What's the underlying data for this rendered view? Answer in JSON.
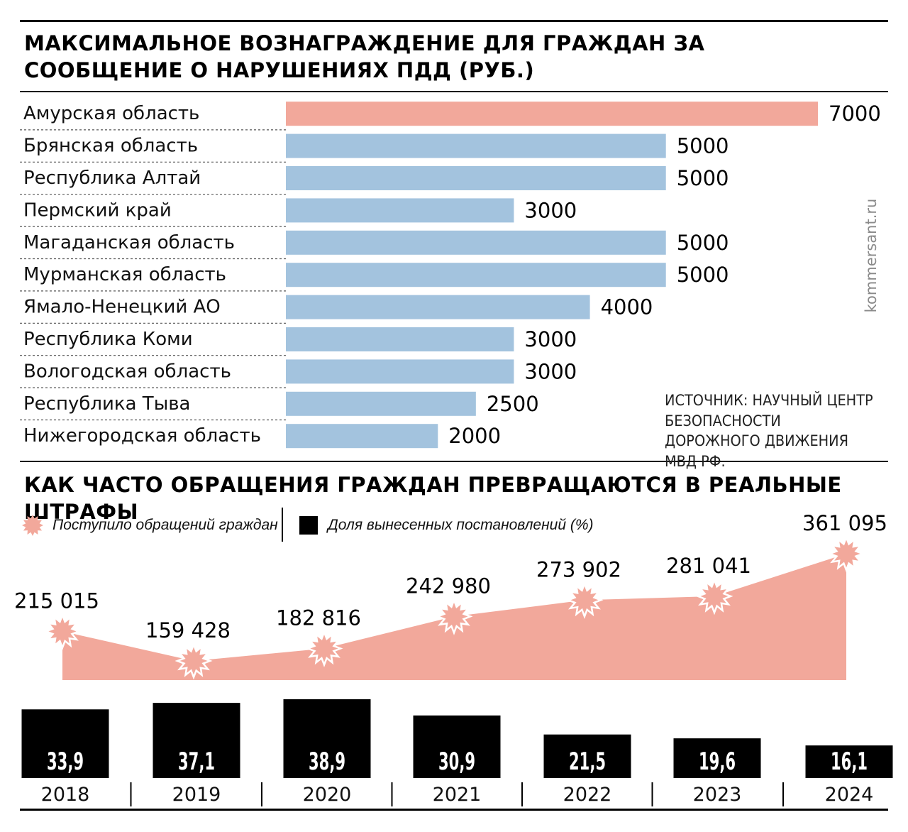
{
  "titles": {
    "chart1": "МАКСИМАЛЬНОЕ ВОЗНАГРАЖДЕНИЕ ДЛЯ ГРАЖДАН ЗА СООБЩЕНИЕ О НАРУШЕНИЯХ ПДД (РУБ.)",
    "chart2": "КАК ЧАСТО ОБРАЩЕНИЯ ГРАЖДАН ПРЕВРАЩАЮТСЯ В РЕАЛЬНЫЕ ШТРАФЫ"
  },
  "source": "ИСТОЧНИК: НАУЧНЫЙ ЦЕНТР БЕЗОПАСНОСТИ ДОРОЖНОГО ДВИЖЕНИЯ МВД РФ.",
  "watermark": "kommersant.ru",
  "legend": {
    "appeals": "Поступило обращений граждан",
    "share": "Доля вынесенных постановлений (%)"
  },
  "colors": {
    "highlight": "#f2a89b",
    "bar": "#a3c3de",
    "area": "#f2a89b",
    "ink": "#000000"
  },
  "chart_data": [
    {
      "type": "bar",
      "orientation": "horizontal",
      "title": "МАКСИМАЛЬНОЕ ВОЗНАГРАЖДЕНИЕ ДЛЯ ГРАЖДАН ЗА СООБЩЕНИЕ О НАРУШЕНИЯХ ПДД (РУБ.)",
      "categories": [
        "Амурская область",
        "Брянская область",
        "Республика Алтай",
        "Пермский край",
        "Магаданская область",
        "Мурманская область",
        "Ямало-Ненецкий АО",
        "Республика Коми",
        "Вологодская область",
        "Республика Тыва",
        "Нижегородская область"
      ],
      "values": [
        7000,
        5000,
        5000,
        3000,
        5000,
        5000,
        4000,
        3000,
        3000,
        2500,
        2000
      ],
      "highlight_index": 0,
      "xlim": [
        0,
        7000
      ]
    },
    {
      "type": "area",
      "title": "КАК ЧАСТО ОБРАЩЕНИЯ ГРАЖДАН ПРЕВРАЩАЮТСЯ В РЕАЛЬНЫЕ ШТРАФЫ",
      "series_name": "Поступило обращений граждан",
      "x": [
        "2018",
        "2019",
        "2020",
        "2021",
        "2022",
        "2023",
        "2024"
      ],
      "values": [
        215015,
        159428,
        182816,
        242980,
        273902,
        281041,
        361095
      ],
      "labels": [
        "215 015",
        "159 428",
        "182 816",
        "242 980",
        "273 902",
        "281 041",
        "361 095"
      ]
    },
    {
      "type": "bar",
      "series_name": "Доля вынесенных постановлений (%)",
      "categories": [
        "2018",
        "2019",
        "2020",
        "2021",
        "2022",
        "2023",
        "2024"
      ],
      "values": [
        33.9,
        37.1,
        38.9,
        30.9,
        21.5,
        19.6,
        16.1
      ],
      "labels": [
        "33,9",
        "37,1",
        "38,9",
        "30,9",
        "21,5",
        "19,6",
        "16,1"
      ]
    }
  ]
}
